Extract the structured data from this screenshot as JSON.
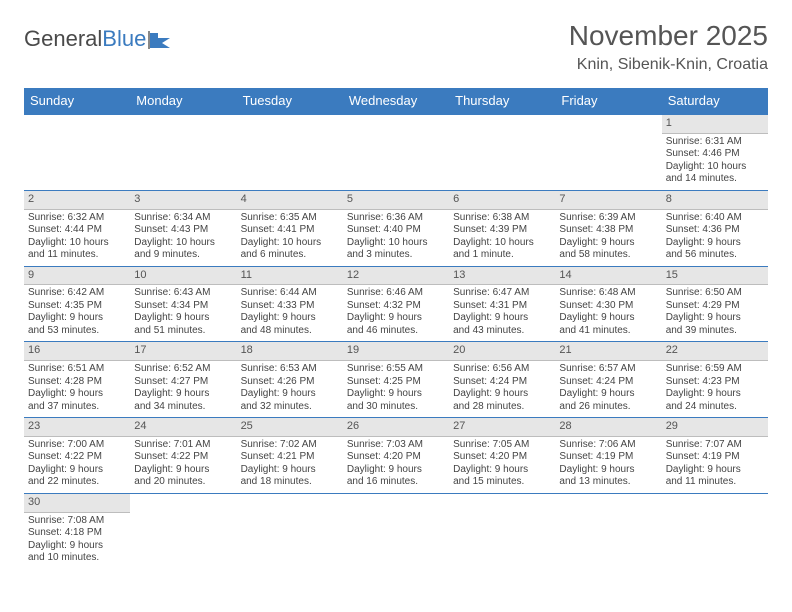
{
  "logo": {
    "text_a": "General",
    "text_b": "Blue"
  },
  "title": "November 2025",
  "location": "Knin, Sibenik-Knin, Croatia",
  "colors": {
    "header_bg": "#3b7bbf",
    "header_text": "#ffffff",
    "daynum_bg": "#e6e6e6",
    "border": "#3b7bbf",
    "text": "#444444",
    "title_text": "#555555"
  },
  "day_headers": [
    "Sunday",
    "Monday",
    "Tuesday",
    "Wednesday",
    "Thursday",
    "Friday",
    "Saturday"
  ],
  "weeks": [
    [
      null,
      null,
      null,
      null,
      null,
      null,
      {
        "n": "1",
        "sr": "Sunrise: 6:31 AM",
        "ss": "Sunset: 4:46 PM",
        "dl1": "Daylight: 10 hours",
        "dl2": "and 14 minutes."
      }
    ],
    [
      {
        "n": "2",
        "sr": "Sunrise: 6:32 AM",
        "ss": "Sunset: 4:44 PM",
        "dl1": "Daylight: 10 hours",
        "dl2": "and 11 minutes."
      },
      {
        "n": "3",
        "sr": "Sunrise: 6:34 AM",
        "ss": "Sunset: 4:43 PM",
        "dl1": "Daylight: 10 hours",
        "dl2": "and 9 minutes."
      },
      {
        "n": "4",
        "sr": "Sunrise: 6:35 AM",
        "ss": "Sunset: 4:41 PM",
        "dl1": "Daylight: 10 hours",
        "dl2": "and 6 minutes."
      },
      {
        "n": "5",
        "sr": "Sunrise: 6:36 AM",
        "ss": "Sunset: 4:40 PM",
        "dl1": "Daylight: 10 hours",
        "dl2": "and 3 minutes."
      },
      {
        "n": "6",
        "sr": "Sunrise: 6:38 AM",
        "ss": "Sunset: 4:39 PM",
        "dl1": "Daylight: 10 hours",
        "dl2": "and 1 minute."
      },
      {
        "n": "7",
        "sr": "Sunrise: 6:39 AM",
        "ss": "Sunset: 4:38 PM",
        "dl1": "Daylight: 9 hours",
        "dl2": "and 58 minutes."
      },
      {
        "n": "8",
        "sr": "Sunrise: 6:40 AM",
        "ss": "Sunset: 4:36 PM",
        "dl1": "Daylight: 9 hours",
        "dl2": "and 56 minutes."
      }
    ],
    [
      {
        "n": "9",
        "sr": "Sunrise: 6:42 AM",
        "ss": "Sunset: 4:35 PM",
        "dl1": "Daylight: 9 hours",
        "dl2": "and 53 minutes."
      },
      {
        "n": "10",
        "sr": "Sunrise: 6:43 AM",
        "ss": "Sunset: 4:34 PM",
        "dl1": "Daylight: 9 hours",
        "dl2": "and 51 minutes."
      },
      {
        "n": "11",
        "sr": "Sunrise: 6:44 AM",
        "ss": "Sunset: 4:33 PM",
        "dl1": "Daylight: 9 hours",
        "dl2": "and 48 minutes."
      },
      {
        "n": "12",
        "sr": "Sunrise: 6:46 AM",
        "ss": "Sunset: 4:32 PM",
        "dl1": "Daylight: 9 hours",
        "dl2": "and 46 minutes."
      },
      {
        "n": "13",
        "sr": "Sunrise: 6:47 AM",
        "ss": "Sunset: 4:31 PM",
        "dl1": "Daylight: 9 hours",
        "dl2": "and 43 minutes."
      },
      {
        "n": "14",
        "sr": "Sunrise: 6:48 AM",
        "ss": "Sunset: 4:30 PM",
        "dl1": "Daylight: 9 hours",
        "dl2": "and 41 minutes."
      },
      {
        "n": "15",
        "sr": "Sunrise: 6:50 AM",
        "ss": "Sunset: 4:29 PM",
        "dl1": "Daylight: 9 hours",
        "dl2": "and 39 minutes."
      }
    ],
    [
      {
        "n": "16",
        "sr": "Sunrise: 6:51 AM",
        "ss": "Sunset: 4:28 PM",
        "dl1": "Daylight: 9 hours",
        "dl2": "and 37 minutes."
      },
      {
        "n": "17",
        "sr": "Sunrise: 6:52 AM",
        "ss": "Sunset: 4:27 PM",
        "dl1": "Daylight: 9 hours",
        "dl2": "and 34 minutes."
      },
      {
        "n": "18",
        "sr": "Sunrise: 6:53 AM",
        "ss": "Sunset: 4:26 PM",
        "dl1": "Daylight: 9 hours",
        "dl2": "and 32 minutes."
      },
      {
        "n": "19",
        "sr": "Sunrise: 6:55 AM",
        "ss": "Sunset: 4:25 PM",
        "dl1": "Daylight: 9 hours",
        "dl2": "and 30 minutes."
      },
      {
        "n": "20",
        "sr": "Sunrise: 6:56 AM",
        "ss": "Sunset: 4:24 PM",
        "dl1": "Daylight: 9 hours",
        "dl2": "and 28 minutes."
      },
      {
        "n": "21",
        "sr": "Sunrise: 6:57 AM",
        "ss": "Sunset: 4:24 PM",
        "dl1": "Daylight: 9 hours",
        "dl2": "and 26 minutes."
      },
      {
        "n": "22",
        "sr": "Sunrise: 6:59 AM",
        "ss": "Sunset: 4:23 PM",
        "dl1": "Daylight: 9 hours",
        "dl2": "and 24 minutes."
      }
    ],
    [
      {
        "n": "23",
        "sr": "Sunrise: 7:00 AM",
        "ss": "Sunset: 4:22 PM",
        "dl1": "Daylight: 9 hours",
        "dl2": "and 22 minutes."
      },
      {
        "n": "24",
        "sr": "Sunrise: 7:01 AM",
        "ss": "Sunset: 4:22 PM",
        "dl1": "Daylight: 9 hours",
        "dl2": "and 20 minutes."
      },
      {
        "n": "25",
        "sr": "Sunrise: 7:02 AM",
        "ss": "Sunset: 4:21 PM",
        "dl1": "Daylight: 9 hours",
        "dl2": "and 18 minutes."
      },
      {
        "n": "26",
        "sr": "Sunrise: 7:03 AM",
        "ss": "Sunset: 4:20 PM",
        "dl1": "Daylight: 9 hours",
        "dl2": "and 16 minutes."
      },
      {
        "n": "27",
        "sr": "Sunrise: 7:05 AM",
        "ss": "Sunset: 4:20 PM",
        "dl1": "Daylight: 9 hours",
        "dl2": "and 15 minutes."
      },
      {
        "n": "28",
        "sr": "Sunrise: 7:06 AM",
        "ss": "Sunset: 4:19 PM",
        "dl1": "Daylight: 9 hours",
        "dl2": "and 13 minutes."
      },
      {
        "n": "29",
        "sr": "Sunrise: 7:07 AM",
        "ss": "Sunset: 4:19 PM",
        "dl1": "Daylight: 9 hours",
        "dl2": "and 11 minutes."
      }
    ],
    [
      {
        "n": "30",
        "sr": "Sunrise: 7:08 AM",
        "ss": "Sunset: 4:18 PM",
        "dl1": "Daylight: 9 hours",
        "dl2": "and 10 minutes."
      },
      null,
      null,
      null,
      null,
      null,
      null
    ]
  ]
}
